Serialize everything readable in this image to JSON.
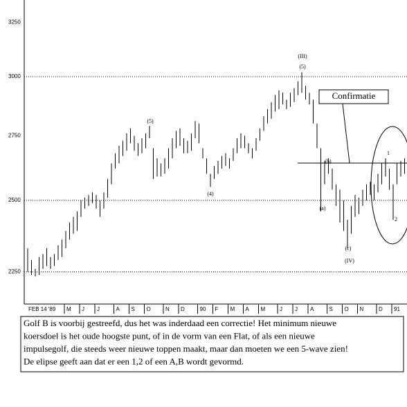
{
  "chart_data": {
    "type": "hilo",
    "log_scale": true,
    "color": "#000000",
    "ylim": [
      2146,
      3359
    ],
    "yticks": [
      2250,
      2500,
      2750,
      3000,
      3250
    ],
    "hlines": [
      2250,
      2500,
      3000
    ],
    "categories": [
      "FEB 14 '89",
      null,
      null,
      null,
      null,
      null,
      null,
      null,
      null,
      null,
      "M",
      null,
      null,
      null,
      "J",
      null,
      null,
      null,
      "J",
      null,
      null,
      null,
      null,
      "A",
      null,
      null,
      null,
      "S",
      null,
      null,
      null,
      "O",
      null,
      null,
      null,
      null,
      "N",
      null,
      null,
      null,
      "D",
      null,
      null,
      null,
      null,
      "90",
      null,
      null,
      null,
      "F",
      null,
      null,
      null,
      "M",
      null,
      null,
      null,
      "A",
      null,
      null,
      null,
      "M",
      null,
      null,
      null,
      null,
      "J",
      null,
      null,
      null,
      "J",
      null,
      null,
      null,
      "A",
      null,
      null,
      null,
      null,
      "S",
      null,
      null,
      null,
      "O",
      null,
      null,
      null,
      "N",
      null,
      null,
      null,
      null,
      "D",
      null,
      null,
      null,
      "91",
      null,
      null,
      null
    ],
    "high": [
      2330,
      2290,
      2260,
      2300,
      2310,
      2330,
      2300,
      2310,
      2340,
      2360,
      2390,
      2420,
      2440,
      2460,
      2500,
      2510,
      2520,
      2530,
      2520,
      2500,
      2530,
      2580,
      2640,
      2680,
      2710,
      2730,
      2760,
      2780,
      2750,
      2720,
      2740,
      2760,
      2790,
      2700,
      2660,
      2640,
      2660,
      2700,
      2740,
      2770,
      2780,
      2740,
      2730,
      2760,
      2810,
      2800,
      2700,
      2660,
      2600,
      2630,
      2650,
      2670,
      2680,
      2660,
      2700,
      2740,
      2760,
      2750,
      2720,
      2700,
      2740,
      2780,
      2830,
      2860,
      2890,
      2920,
      2940,
      2930,
      2900,
      2930,
      2950,
      2980,
      3020,
      2960,
      2930,
      2900,
      2800,
      2700,
      2650,
      2660,
      2620,
      2560,
      2540,
      2500,
      2430,
      2480,
      2520,
      2510,
      2540,
      2560,
      2570,
      2560,
      2600,
      2640,
      2660,
      2620,
      2560,
      2640,
      2650,
      2660
    ],
    "low": [
      2250,
      2240,
      2235,
      2240,
      2260,
      2270,
      2260,
      2270,
      2290,
      2300,
      2330,
      2360,
      2380,
      2390,
      2440,
      2470,
      2480,
      2490,
      2470,
      2440,
      2470,
      2510,
      2560,
      2620,
      2640,
      2670,
      2690,
      2720,
      2690,
      2670,
      2680,
      2700,
      2740,
      2580,
      2590,
      2590,
      2600,
      2620,
      2660,
      2700,
      2710,
      2680,
      2680,
      2690,
      2740,
      2720,
      2660,
      2600,
      2550,
      2580,
      2600,
      2620,
      2630,
      2620,
      2650,
      2680,
      2700,
      2700,
      2680,
      2660,
      2690,
      2730,
      2770,
      2800,
      2820,
      2850,
      2860,
      2880,
      2860,
      2870,
      2890,
      2920,
      2930,
      2900,
      2880,
      2800,
      2700,
      2460,
      2560,
      2600,
      2540,
      2480,
      2420,
      2390,
      2330,
      2380,
      2440,
      2450,
      2480,
      2500,
      2520,
      2500,
      2530,
      2560,
      2590,
      2540,
      2430,
      2560,
      2590,
      2600
    ],
    "annotations": [
      "(III)",
      "(5)",
      "(5)",
      "(4)",
      "(a)",
      "(b)",
      "(c)",
      "(IV)",
      "1",
      "2",
      "Confirmatie"
    ],
    "note": [
      "Golf B is voorbij gestreefd, dus het was inderdaad een correctie! Het minimum nieuwe",
      "koersdoel is het oude hoogste punt, of in de vorm van een  Flat, of als een nieuwe",
      "impulsegolf, die steeds weer nieuwe toppen maakt, maar dan moeten we een 5-wave zien!",
      "De elipse geeft aan dat er een 1,2 of een A,B wordt gevormd."
    ]
  }
}
